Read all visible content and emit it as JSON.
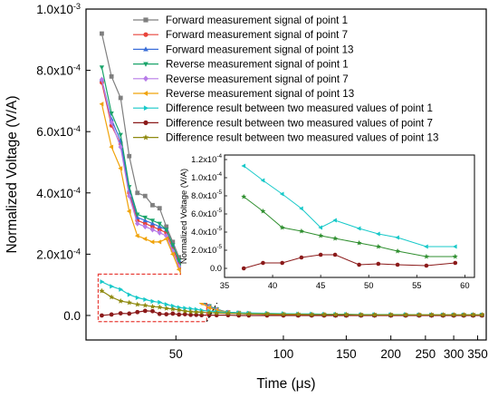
{
  "chart_data": [
    {
      "type": "line",
      "xlabel": "Time (μs)",
      "ylabel": "Normalized Voltage (V/A)",
      "x_scale": "log",
      "xlim": [
        28,
        370
      ],
      "ylim": [
        -8e-05,
        0.001
      ],
      "x_ticks": [
        50,
        100,
        150,
        200,
        250,
        300,
        350
      ],
      "x_tick_labels": [
        "50",
        "100",
        "150",
        "200",
        "250",
        "300",
        "350"
      ],
      "y_ticks": [
        0,
        0.0002,
        0.0004,
        0.0006,
        0.0008,
        0.001
      ],
      "y_tick_labels": [
        {
          "base": "0.0",
          "exp": ""
        },
        {
          "base": "2.0x10",
          "exp": "-4"
        },
        {
          "base": "4.0x10",
          "exp": "-4"
        },
        {
          "base": "6.0x10",
          "exp": "-4"
        },
        {
          "base": "8.0x10",
          "exp": "-4"
        },
        {
          "base": "1.0x10",
          "exp": "-3"
        }
      ],
      "legend_position": "top-right",
      "series": [
        {
          "name": "Forward measurement signal of point 1",
          "color": "#7f7f7f",
          "marker": "square",
          "x": [
            31,
            33,
            35,
            37,
            39,
            41,
            43,
            45,
            47,
            49,
            51,
            53,
            55,
            57,
            59,
            62,
            65,
            70,
            75,
            80,
            90,
            100,
            110,
            120,
            130,
            140,
            150,
            165,
            180,
            200,
            220,
            240,
            260,
            280,
            300,
            320,
            340,
            360
          ],
          "values": [
            0.00092,
            0.00078,
            0.00071,
            0.00052,
            0.0004,
            0.00039,
            0.00036,
            0.00035,
            0.00029,
            0.00024,
            0.00019,
            0.00013,
            9.5e-05,
            7.5e-05,
            5e-05,
            3e-05,
            2e-05,
            1e-05,
            8e-06,
            6e-06,
            4e-06,
            3e-06,
            2e-06,
            2e-06,
            2e-06,
            1e-06,
            1e-06,
            1e-06,
            1e-06,
            1e-06,
            1e-06,
            1e-06,
            1e-06,
            1e-06,
            1e-06,
            1e-06,
            1e-06,
            1e-06
          ]
        },
        {
          "name": "Forward measurement signal of point 7",
          "color": "#e8433a",
          "marker": "circle",
          "x": [
            31,
            33,
            35,
            37,
            39,
            41,
            43,
            45,
            47,
            49,
            51,
            53,
            55,
            57,
            59,
            62,
            65,
            70,
            75,
            80,
            90,
            100,
            110,
            120,
            130,
            140,
            150,
            165,
            180,
            200,
            220,
            240,
            260,
            280,
            300,
            320,
            340,
            360
          ],
          "values": [
            0.00076,
            0.00062,
            0.00056,
            0.0004,
            0.00031,
            0.0003,
            0.00029,
            0.00028,
            0.00027,
            0.00022,
            0.00017,
            0.00012,
            9e-05,
            7e-05,
            4.5e-05,
            2.8e-05,
            1.8e-05,
            1e-05,
            8e-06,
            6e-06,
            4e-06,
            3e-06,
            2e-06,
            2e-06,
            2e-06,
            1e-06,
            1e-06,
            1e-06,
            1e-06,
            1e-06,
            1e-06,
            1e-06,
            1e-06,
            1e-06,
            1e-06,
            1e-06,
            1e-06,
            1e-06
          ]
        },
        {
          "name": "Forward measurement signal of point 13",
          "color": "#3b6fd9",
          "marker": "triangle-up",
          "x": [
            31,
            33,
            35,
            37,
            39,
            41,
            43,
            45,
            47,
            49,
            51,
            53,
            55,
            57,
            59,
            62,
            65,
            70,
            75,
            80,
            90,
            100,
            110,
            120,
            130,
            140,
            150,
            165,
            180,
            200,
            220,
            240,
            260,
            280,
            300,
            320,
            340,
            360
          ],
          "values": [
            0.00077,
            0.00064,
            0.00057,
            0.00041,
            0.00032,
            0.00031,
            0.0003,
            0.00029,
            0.00028,
            0.00023,
            0.00018,
            0.00012,
            9.2e-05,
            7.2e-05,
            4.7e-05,
            3e-05,
            2e-05,
            1e-05,
            8e-06,
            6e-06,
            4e-06,
            3e-06,
            2e-06,
            2e-06,
            2e-06,
            1e-06,
            1e-06,
            1e-06,
            1e-06,
            1e-06,
            1e-06,
            1e-06,
            1e-06,
            1e-06,
            1e-06,
            1e-06,
            1e-06,
            1e-06
          ]
        },
        {
          "name": "Reverse measurement signal of point 1",
          "color": "#1aa46a",
          "marker": "triangle-down",
          "x": [
            31,
            33,
            35,
            37,
            39,
            41,
            43,
            45,
            47,
            49,
            51,
            53,
            55,
            57,
            59,
            62,
            65,
            70,
            75,
            80,
            90,
            100,
            110,
            120,
            130,
            140,
            150,
            165,
            180,
            200,
            220,
            240,
            260,
            280,
            300,
            320,
            340,
            360
          ],
          "values": [
            0.00081,
            0.00066,
            0.00059,
            0.00042,
            0.00033,
            0.00032,
            0.00031,
            0.0003,
            0.00028,
            0.00023,
            0.00018,
            0.000125,
            9.3e-05,
            7.3e-05,
            4.8e-05,
            3e-05,
            2e-05,
            1e-05,
            8e-06,
            6e-06,
            4e-06,
            3e-06,
            2e-06,
            2e-06,
            2e-06,
            1e-06,
            1e-06,
            1e-06,
            1e-06,
            1e-06,
            1e-06,
            1e-06,
            1e-06,
            1e-06,
            1e-06,
            1e-06,
            1e-06,
            1e-06
          ]
        },
        {
          "name": "Reverse measurement signal of point 7",
          "color": "#b77be8",
          "marker": "diamond",
          "x": [
            31,
            33,
            35,
            37,
            39,
            41,
            43,
            45,
            47,
            49,
            51,
            53,
            55,
            57,
            59,
            62,
            65,
            70,
            75,
            80,
            90,
            100,
            110,
            120,
            130,
            140,
            150,
            165,
            180,
            200,
            220,
            240,
            260,
            280,
            300,
            320,
            340,
            360
          ],
          "values": [
            0.00077,
            0.00063,
            0.00055,
            0.00039,
            0.0003,
            0.00029,
            0.00028,
            0.00027,
            0.00026,
            0.00021,
            0.00016,
            0.00011,
            8.5e-05,
            6.5e-05,
            4.2e-05,
            2.7e-05,
            1.8e-05,
            1e-05,
            7e-06,
            5e-06,
            4e-06,
            3e-06,
            2e-06,
            2e-06,
            2e-06,
            1e-06,
            1e-06,
            1e-06,
            1e-06,
            1e-06,
            1e-06,
            1e-06,
            1e-06,
            1e-06,
            1e-06,
            1e-06,
            1e-06,
            1e-06
          ]
        },
        {
          "name": "Reverse measurement signal of point 13",
          "color": "#f0a30a",
          "marker": "triangle-left",
          "x": [
            31,
            33,
            35,
            37,
            39,
            41,
            43,
            45,
            47,
            49,
            51,
            53,
            55,
            57,
            59,
            62,
            65,
            70,
            75,
            80,
            90,
            100,
            110,
            120,
            130,
            140,
            150,
            165,
            180,
            200,
            220,
            240,
            260,
            280,
            300,
            320,
            340,
            360
          ],
          "values": [
            0.00069,
            0.00055,
            0.00048,
            0.00034,
            0.00026,
            0.00025,
            0.00024,
            0.00024,
            0.00025,
            0.0002,
            0.00015,
            0.000105,
            8e-05,
            6.2e-05,
            4e-05,
            2.5e-05,
            1.7e-05,
            1e-05,
            7e-06,
            5e-06,
            4e-06,
            3e-06,
            2e-06,
            2e-06,
            2e-06,
            1e-06,
            1e-06,
            1e-06,
            1e-06,
            1e-06,
            1e-06,
            1e-06,
            1e-06,
            1e-06,
            1e-06,
            1e-06,
            1e-06,
            1e-06
          ]
        },
        {
          "name": "Difference result between two measured values of point 1",
          "color": "#17c9c9",
          "marker": "triangle-right",
          "x": [
            31,
            33,
            35,
            37,
            39,
            41,
            43,
            45,
            47,
            49,
            51,
            53,
            55,
            57,
            59,
            62,
            65,
            70,
            75,
            80,
            90,
            100,
            110,
            120,
            130,
            140,
            150,
            165,
            180,
            200,
            220,
            240,
            260,
            280,
            300,
            320,
            340,
            360
          ],
          "values": [
            0.00011,
            9.5e-05,
            8.5e-05,
            6.8e-05,
            5.8e-05,
            5.2e-05,
            4.6e-05,
            4.3e-05,
            3.6e-05,
            3.1e-05,
            2.6e-05,
            2.4e-05,
            2.2e-05,
            2e-05,
            1.7e-05,
            1.4e-05,
            1.2e-05,
            1e-05,
            9e-06,
            8e-06,
            7e-06,
            6e-06,
            5e-06,
            5e-06,
            4e-06,
            4e-06,
            4e-06,
            3e-06,
            3e-06,
            3e-06,
            3e-06,
            2e-06,
            2e-06,
            2e-06,
            2e-06,
            2e-06,
            2e-06,
            2e-06
          ]
        },
        {
          "name": "Difference result between two measured values of point 7",
          "color": "#8b1a1a",
          "marker": "circle",
          "x": [
            31,
            33,
            35,
            37,
            39,
            41,
            43,
            45,
            47,
            49,
            51,
            53,
            55,
            57,
            59,
            62,
            65,
            70,
            75,
            80,
            90,
            100,
            110,
            120,
            130,
            140,
            150,
            165,
            180,
            200,
            220,
            240,
            260,
            280,
            300,
            320,
            340,
            360
          ],
          "values": [
            0.0,
            3e-06,
            7e-06,
            6e-06,
            1.1e-05,
            1.5e-05,
            1.4e-05,
            5e-06,
            4e-06,
            6e-06,
            3e-06,
            4e-06,
            2e-06,
            2e-06,
            1e-06,
            1e-06,
            1e-06,
            1e-06,
            0.0,
            0.0,
            0.0,
            0.0,
            0.0,
            0.0,
            0.0,
            0.0,
            0.0,
            0.0,
            0.0,
            0.0,
            0.0,
            0.0,
            0.0,
            0.0,
            0.0,
            0.0,
            0.0,
            0.0
          ]
        },
        {
          "name": "Difference result between two measured values of point 13",
          "color": "#8f8a10",
          "marker": "star",
          "x": [
            31,
            33,
            35,
            37,
            39,
            41,
            43,
            45,
            47,
            49,
            51,
            53,
            55,
            57,
            59,
            62,
            65,
            70,
            75,
            80,
            90,
            100,
            110,
            120,
            130,
            140,
            150,
            165,
            180,
            200,
            220,
            240,
            260,
            280,
            300,
            320,
            340,
            360
          ],
          "values": [
            8e-05,
            6e-05,
            4.7e-05,
            4.2e-05,
            3.6e-05,
            3.3e-05,
            2.9e-05,
            2.7e-05,
            2.3e-05,
            2.1e-05,
            1.8e-05,
            1.4e-05,
            1.2e-05,
            1.1e-05,
            1e-05,
            9e-06,
            8e-06,
            7e-06,
            6e-06,
            5e-06,
            5e-06,
            4e-06,
            4e-06,
            3e-06,
            3e-06,
            3e-06,
            3e-06,
            2e-06,
            2e-06,
            2e-06,
            2e-06,
            2e-06,
            2e-06,
            2e-06,
            2e-06,
            2e-06,
            2e-06,
            2e-06
          ]
        }
      ]
    },
    {
      "type": "line",
      "ylabel": "Normalized Voltage (V/A)",
      "xlim": [
        35,
        61
      ],
      "ylim": [
        -1e-05,
        0.000125
      ],
      "x_ticks": [
        35,
        40,
        45,
        50,
        55,
        60
      ],
      "x_tick_labels": [
        "35",
        "40",
        "45",
        "50",
        "55",
        "60"
      ],
      "y_ticks": [
        0,
        2e-05,
        4e-05,
        6e-05,
        8e-05,
        0.0001,
        0.00012
      ],
      "y_tick_labels": [
        {
          "base": "0.0",
          "exp": ""
        },
        {
          "base": "2.0x10",
          "exp": "-5"
        },
        {
          "base": "4.0x10",
          "exp": "-5"
        },
        {
          "base": "6.0x10",
          "exp": "-5"
        },
        {
          "base": "8.0x10",
          "exp": "-5"
        },
        {
          "base": "1.0x10",
          "exp": "-4"
        },
        {
          "base": "1.2x10",
          "exp": "-4"
        }
      ],
      "series": [
        {
          "name": "Difference result between two measured values of point 1",
          "color": "#17c9c9",
          "marker": "triangle-left",
          "x": [
            37,
            39,
            41,
            43,
            45,
            46.5,
            49,
            51,
            53,
            56,
            59
          ],
          "values": [
            0.000113,
            9.7e-05,
            8.2e-05,
            6.6e-05,
            4.5e-05,
            5.3e-05,
            4.4e-05,
            3.8e-05,
            3.4e-05,
            2.4e-05,
            2.4e-05
          ]
        },
        {
          "name": "Difference result between two measured values of point 13",
          "color": "#2f8f2f",
          "marker": "star",
          "x": [
            37,
            39,
            41,
            43,
            45,
            46.5,
            49,
            51,
            53,
            56,
            59
          ],
          "values": [
            7.9e-05,
            6.3e-05,
            4.5e-05,
            4.1e-05,
            3.6e-05,
            3.3e-05,
            2.8e-05,
            2.4e-05,
            1.9e-05,
            1.3e-05,
            1.3e-05
          ]
        },
        {
          "name": "Difference result between two measured values of point 7",
          "color": "#8b1a1a",
          "marker": "circle",
          "x": [
            37,
            39,
            41,
            43,
            45,
            46.5,
            49,
            51,
            53,
            56,
            59
          ],
          "values": [
            0.0,
            6e-06,
            6e-06,
            1.2e-05,
            1.5e-05,
            1.5e-05,
            4e-06,
            5e-06,
            4e-06,
            3e-06,
            6e-06
          ]
        }
      ]
    }
  ]
}
